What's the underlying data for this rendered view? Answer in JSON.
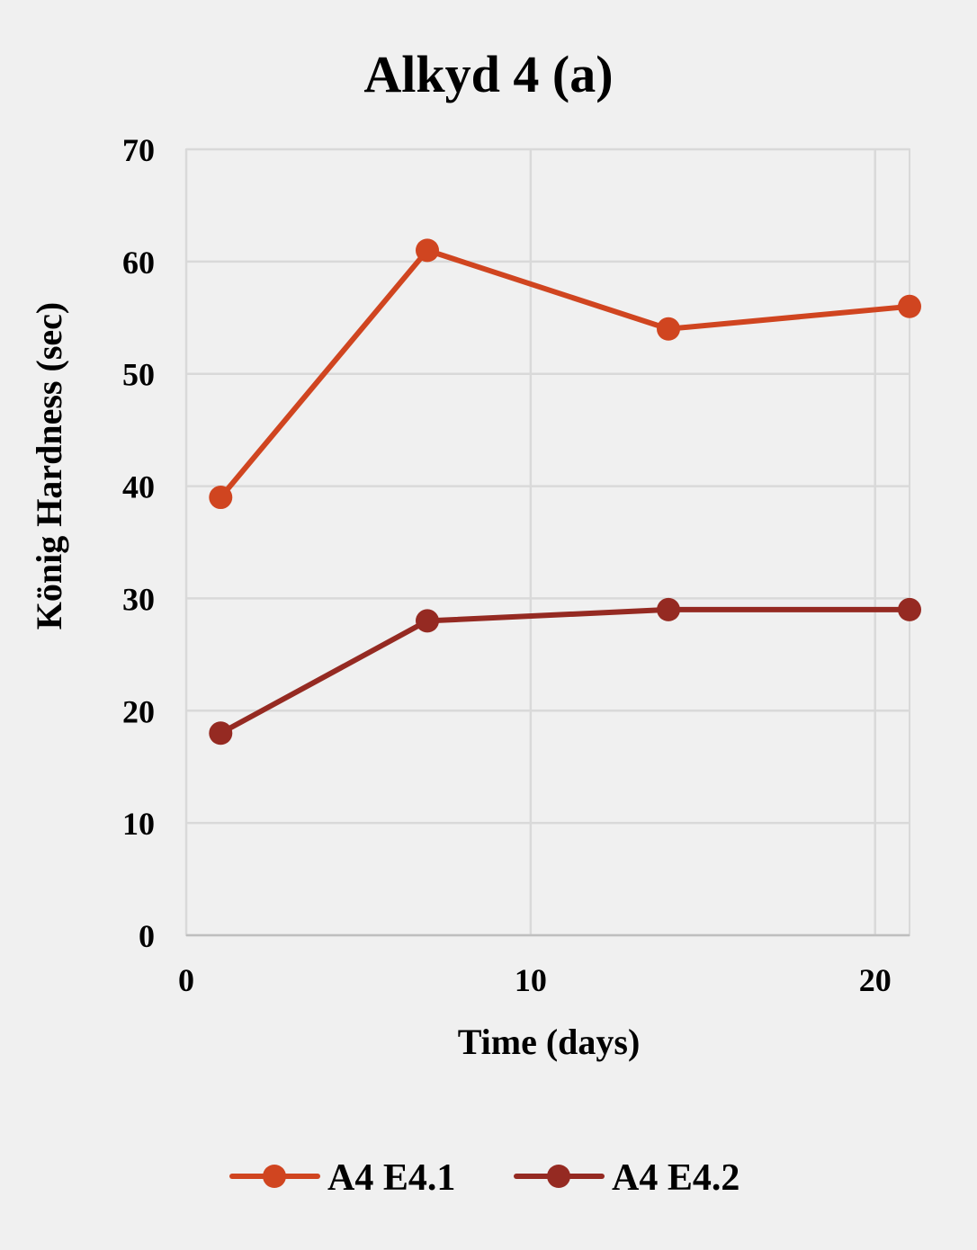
{
  "chart_data": {
    "type": "line",
    "title": "Alkyd 4 (a)",
    "xlabel": "Time (days)",
    "ylabel": "König Hardness (sec)",
    "xlim": [
      0,
      21
    ],
    "ylim": [
      0,
      70
    ],
    "xticks": [
      0,
      10,
      20
    ],
    "yticks": [
      0,
      10,
      20,
      30,
      40,
      50,
      60,
      70
    ],
    "grid": true,
    "legend": "bottom",
    "x": [
      1,
      7,
      14,
      21
    ],
    "series": [
      {
        "name": "A4 E4.1",
        "color": "#d04520",
        "values": [
          39,
          61,
          54,
          56
        ]
      },
      {
        "name": "A4 E4.2",
        "color": "#952a22",
        "values": [
          18,
          28,
          29,
          29
        ]
      }
    ]
  }
}
